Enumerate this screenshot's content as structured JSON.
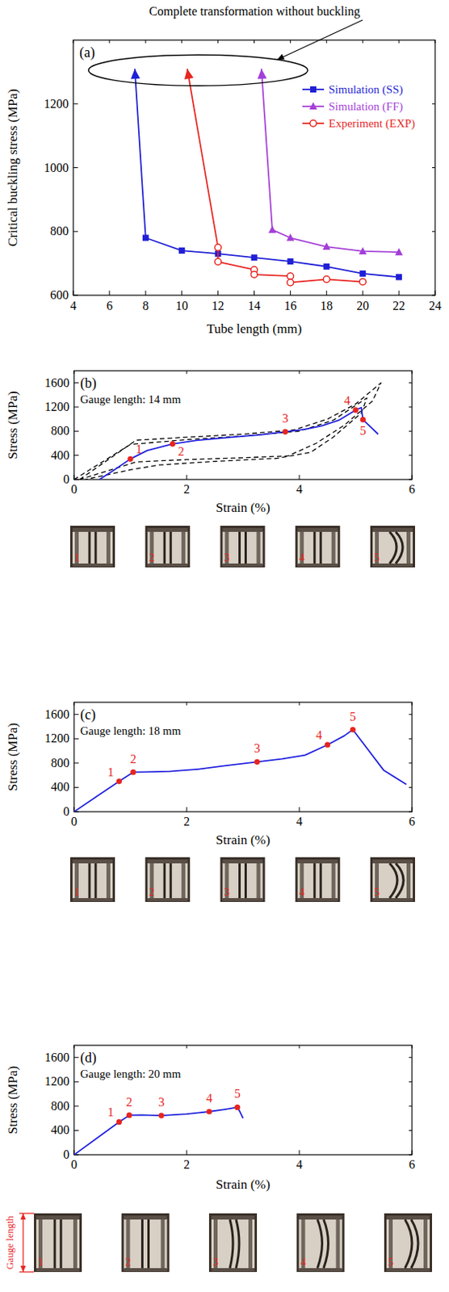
{
  "chart_data": [
    {
      "type": "line",
      "title": "(a)",
      "xlabel": "Tube length (mm)",
      "ylabel": "Critical buckling stress (MPa)",
      "xlim": [
        4,
        24
      ],
      "xticks": [
        4,
        6,
        8,
        10,
        12,
        14,
        16,
        18,
        20,
        22,
        24
      ],
      "ylim": [
        600,
        1400
      ],
      "yticks": [
        600,
        800,
        1000,
        1200
      ],
      "legend": "top-right",
      "annotations": [
        {
          "text": "Complete transformation without buckling"
        }
      ],
      "series": [
        {
          "name": "Simulation (SS)",
          "color": "#1f1fd6",
          "marker": "square",
          "line_style": "arrow",
          "x": [
            7.4,
            8,
            10,
            12,
            14,
            16,
            18,
            20,
            22
          ],
          "values": [
            1310,
            780,
            740,
            730,
            718,
            706,
            690,
            668,
            657
          ]
        },
        {
          "name": "Simulation (FF)",
          "color": "#a53fd9",
          "marker": "triangle",
          "line_style": "arrow",
          "x": [
            14.4,
            15,
            16,
            18,
            20,
            22
          ],
          "values": [
            1310,
            805,
            780,
            752,
            738,
            735
          ]
        },
        {
          "name": "Experiment (EXP)",
          "color": "#e8251f",
          "marker": "circle",
          "line_style": "arrow",
          "x": [
            10.3,
            12,
            12,
            14,
            14,
            16,
            16,
            18,
            20
          ],
          "values": [
            1310,
            750,
            705,
            680,
            665,
            660,
            640,
            650,
            642
          ]
        }
      ]
    },
    {
      "type": "line",
      "title": "(b)",
      "subtitle": "Gauge length: 14 mm",
      "xlabel": "Strain (%)",
      "ylabel": "Stress (MPa)",
      "xlim": [
        0,
        6
      ],
      "xticks": [
        0,
        2,
        4,
        6
      ],
      "ylim": [
        0,
        1800
      ],
      "yticks": [
        0,
        400,
        800,
        1200,
        1600
      ],
      "annotations": [
        {
          "text": "1",
          "x": 1.0,
          "y": 340
        },
        {
          "text": "2",
          "x": 1.75,
          "y": 590
        },
        {
          "text": "3",
          "x": 3.75,
          "y": 790
        },
        {
          "text": "4",
          "x": 5.0,
          "y": 1150
        },
        {
          "text": "5",
          "x": 5.13,
          "y": 990
        }
      ],
      "series": [
        {
          "color": "#000000",
          "marker": "none",
          "line_style": "dashed",
          "x": [
            0.1,
            1.1,
            2,
            3,
            3.9,
            4.5,
            5.0,
            5.45,
            5.3,
            4.8,
            4.3,
            3.8,
            3,
            2,
            1.1,
            0.1
          ],
          "values": [
            0,
            650,
            700,
            750,
            820,
            1000,
            1250,
            1600,
            1300,
            900,
            600,
            390,
            360,
            330,
            290,
            0
          ]
        },
        {
          "color": "#000000",
          "marker": "none",
          "line_style": "dashed",
          "x": [
            0,
            1.0,
            2,
            3,
            4,
            4.6,
            5.2,
            5.1,
            4.6,
            4.2,
            3.6,
            2.5,
            1.5,
            1,
            0.2
          ],
          "values": [
            0,
            580,
            660,
            720,
            800,
            980,
            1350,
            1100,
            700,
            450,
            350,
            300,
            240,
            160,
            0
          ]
        },
        {
          "color": "#2020e0",
          "marker": "none",
          "line_style": "solid",
          "x": [
            0.45,
            0.7,
            1.0,
            1.3,
            1.75,
            2.2,
            2.8,
            3.3,
            3.75,
            4.1,
            4.4,
            4.7,
            5.0,
            5.1,
            5.13,
            5.4
          ],
          "values": [
            0,
            150,
            340,
            480,
            590,
            650,
            700,
            740,
            790,
            830,
            890,
            980,
            1150,
            1190,
            990,
            750
          ]
        }
      ]
    },
    {
      "type": "line",
      "title": "(c)",
      "subtitle": "Gauge length: 18 mm",
      "xlabel": "Strain (%)",
      "ylabel": "Stress (MPa)",
      "xlim": [
        0,
        6
      ],
      "xticks": [
        0,
        2,
        4,
        6
      ],
      "ylim": [
        0,
        1800
      ],
      "yticks": [
        0,
        400,
        800,
        1200,
        1600
      ],
      "annotations": [
        {
          "text": "1",
          "x": 0.8,
          "y": 500
        },
        {
          "text": "2",
          "x": 1.05,
          "y": 650
        },
        {
          "text": "3",
          "x": 3.25,
          "y": 820
        },
        {
          "text": "4",
          "x": 4.5,
          "y": 1100
        },
        {
          "text": "5",
          "x": 4.95,
          "y": 1350
        }
      ],
      "series": [
        {
          "color": "#2020e0",
          "marker": "none",
          "line_style": "solid",
          "x": [
            0,
            0.4,
            0.8,
            1.05,
            1.3,
            1.7,
            2.2,
            2.7,
            3.25,
            3.7,
            4.1,
            4.5,
            4.8,
            4.95,
            5.5,
            5.9
          ],
          "values": [
            0,
            250,
            500,
            650,
            655,
            665,
            700,
            760,
            820,
            870,
            930,
            1100,
            1250,
            1350,
            680,
            450
          ]
        }
      ]
    },
    {
      "type": "line",
      "title": "(d)",
      "subtitle": "Gauge length: 20 mm",
      "xlabel": "Strain (%)",
      "ylabel": "Stress (MPa)",
      "xlim": [
        0,
        6
      ],
      "xticks": [
        0,
        2,
        4,
        6
      ],
      "ylim": [
        0,
        1800
      ],
      "yticks": [
        0,
        400,
        800,
        1200,
        1600
      ],
      "annotations": [
        {
          "text": "1",
          "x": 0.8,
          "y": 540
        },
        {
          "text": "2",
          "x": 0.98,
          "y": 650
        },
        {
          "text": "3",
          "x": 1.55,
          "y": 645
        },
        {
          "text": "4",
          "x": 2.4,
          "y": 710
        },
        {
          "text": "5",
          "x": 2.9,
          "y": 780
        },
        {
          "text": "Gauge length"
        }
      ],
      "series": [
        {
          "color": "#2020e0",
          "marker": "none",
          "line_style": "solid",
          "x": [
            0,
            0.4,
            0.8,
            0.98,
            1.2,
            1.55,
            2.0,
            2.4,
            2.7,
            2.9,
            2.95,
            3.0
          ],
          "values": [
            0,
            270,
            540,
            650,
            655,
            645,
            670,
            710,
            750,
            780,
            700,
            600
          ]
        }
      ]
    }
  ]
}
